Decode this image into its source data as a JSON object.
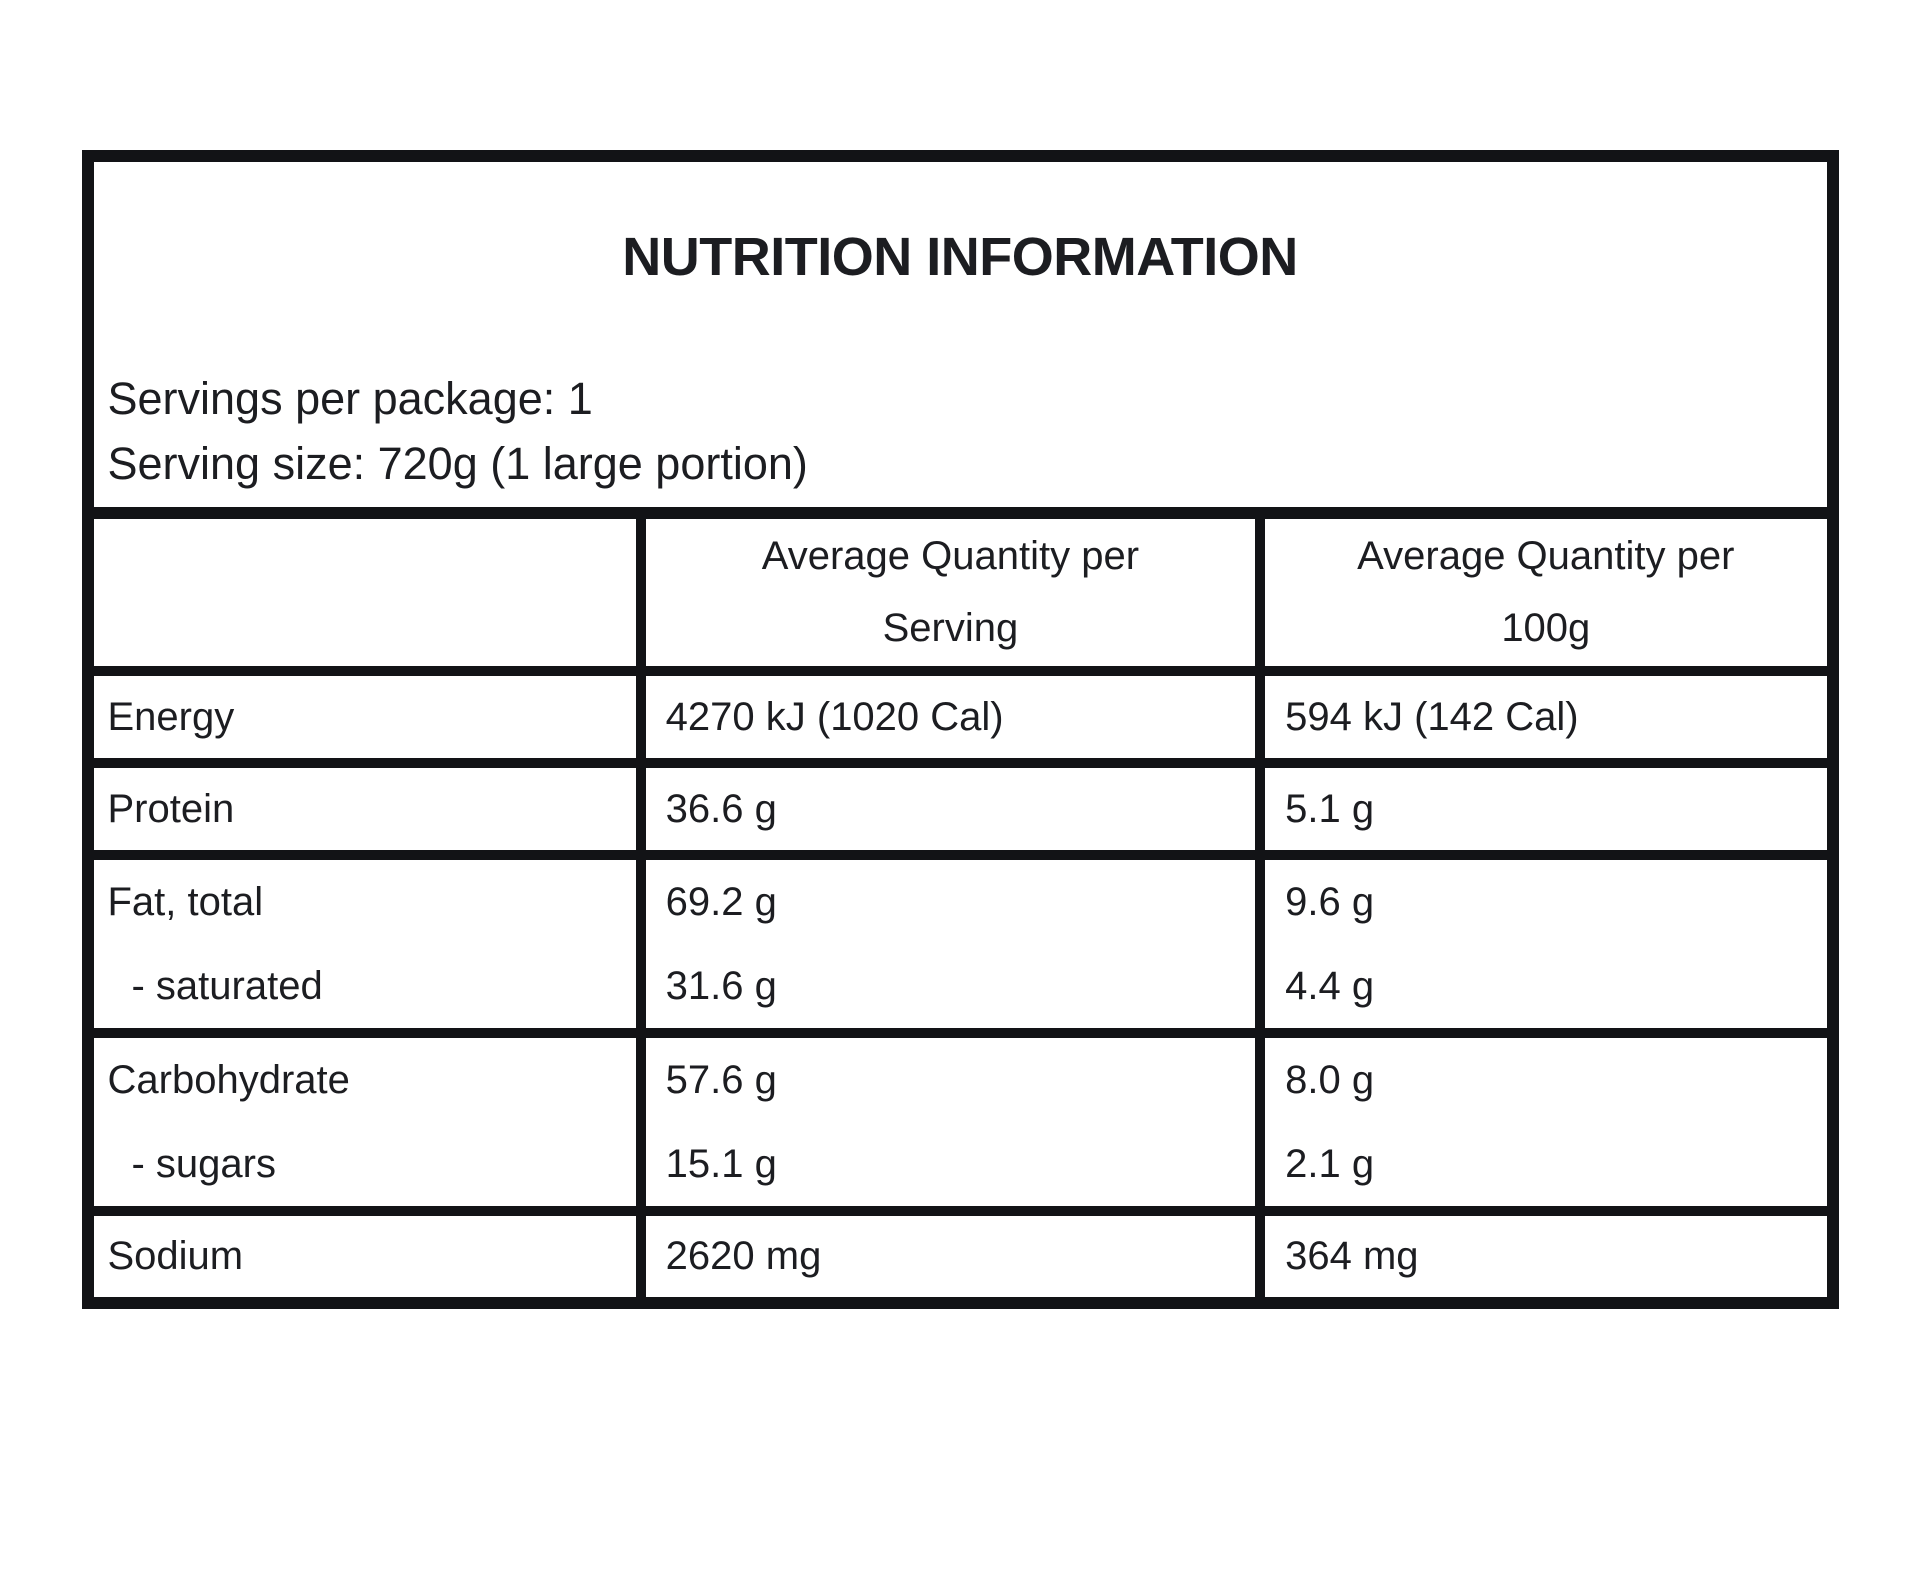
{
  "panel": {
    "title": "NUTRITION INFORMATION",
    "servings_per_package": "Servings per package: 1",
    "serving_size": "Serving size: 720g (1 large portion)"
  },
  "table": {
    "header": {
      "per_serving_line1": "Average Quantity per",
      "per_serving_line2": "Serving",
      "per_100g_line1": "Average Quantity per",
      "per_100g_line2": "100g"
    },
    "rows": [
      {
        "label": "Energy",
        "per_serving": "4270 kJ (1020 Cal)",
        "per_100g": "594 kJ (142 Cal)"
      },
      {
        "label": "Protein",
        "per_serving": "36.6 g",
        "per_100g": "5.1 g"
      },
      {
        "label": "Fat, total",
        "per_serving": "69.2 g",
        "per_100g": "9.6 g",
        "sub_label": "- saturated",
        "sub_per_serving": "31.6 g",
        "sub_per_100g": "4.4 g"
      },
      {
        "label": "Carbohydrate",
        "per_serving": "57.6 g",
        "per_100g": "8.0 g",
        "sub_label": "- sugars",
        "sub_per_serving": "15.1 g",
        "sub_per_100g": "2.1 g"
      },
      {
        "label": "Sodium",
        "per_serving": "2620 mg",
        "per_100g": "364 mg"
      }
    ]
  },
  "colors": {
    "text": "#1c1d21",
    "border": "#121316",
    "background": "#ffffff"
  }
}
